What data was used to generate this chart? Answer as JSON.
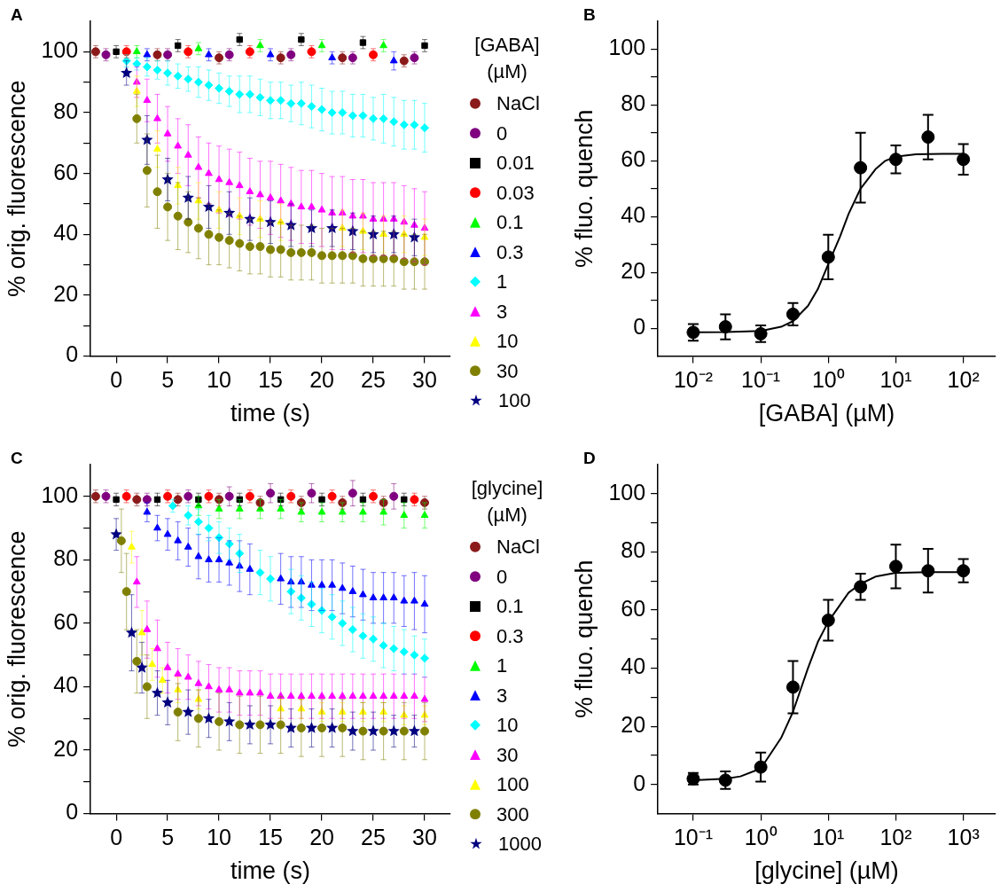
{
  "chart_data": [
    {
      "type": "scatter",
      "xlabel": "time (s)",
      "ylabel": "% orig. fluorescence",
      "legend_title": "[GABA] (µM)",
      "legend": "right",
      "annotations": [
        "A"
      ],
      "xlim": [
        -2.5,
        32.5
      ],
      "xticks": [
        0,
        5,
        10,
        15,
        20,
        25,
        30
      ],
      "ylim": [
        0,
        110
      ],
      "yticks": [
        0,
        {
          "value": 10,
          "label": null
        },
        20,
        {
          "value": 30,
          "label": null
        },
        40,
        {
          "value": 50,
          "label": null
        },
        60,
        {
          "value": 70,
          "label": null
        },
        80,
        {
          "value": 90,
          "label": null
        },
        100
      ],
      "series": [
        {
          "name": "NaCl",
          "color": "#8b1a1a",
          "marker": "circle",
          "x": [
            -2,
            4,
            10,
            16,
            22,
            28
          ],
          "values": [
            100,
            99,
            98,
            98,
            98,
            97
          ],
          "errors": [
            2,
            2,
            2,
            2,
            2,
            2
          ]
        },
        {
          "name": "0",
          "color": "#800080",
          "marker": "circle",
          "x": [
            -1,
            5,
            11,
            17,
            23,
            29
          ],
          "values": [
            99,
            99,
            99,
            99,
            98,
            98
          ],
          "errors": [
            2,
            2,
            2,
            2,
            2,
            2
          ]
        },
        {
          "name": "0.01",
          "color": "#000000",
          "marker": "square",
          "x": [
            0,
            6,
            12,
            18,
            24,
            30
          ],
          "values": [
            100,
            102,
            104,
            104,
            103,
            102
          ],
          "errors": [
            2,
            2,
            2,
            2,
            2,
            2
          ]
        },
        {
          "name": "0.03",
          "color": "#ff0000",
          "marker": "circle",
          "x": [
            1,
            7,
            13,
            19,
            25
          ],
          "values": [
            100,
            100,
            100,
            100,
            99
          ],
          "errors": [
            2,
            2,
            2,
            2,
            2
          ]
        },
        {
          "name": "0.1",
          "color": "#00ff00",
          "marker": "triangle",
          "x": [
            2,
            8,
            14,
            20,
            26
          ],
          "values": [
            100,
            101,
            102,
            102,
            102
          ],
          "errors": [
            2,
            2,
            2,
            2,
            2
          ]
        },
        {
          "name": "0.3",
          "color": "#0000ff",
          "marker": "triangle",
          "x": [
            3,
            9,
            15,
            21,
            27
          ],
          "values": [
            99,
            99,
            99,
            98,
            97
          ],
          "errors": [
            2,
            2,
            2,
            2,
            3
          ]
        },
        {
          "name": "1",
          "color": "#00ffff",
          "marker": "diamond",
          "x": [
            1,
            2,
            3,
            4,
            5,
            6,
            7,
            8,
            9,
            10,
            11,
            12,
            13,
            14,
            15,
            16,
            17,
            18,
            19,
            20,
            21,
            22,
            23,
            24,
            25,
            26,
            27,
            28,
            29,
            30
          ],
          "values": [
            97,
            96,
            95,
            94,
            93,
            92,
            91,
            90,
            89,
            88,
            87,
            86,
            86,
            85,
            84,
            84,
            83,
            83,
            82,
            81,
            80,
            80,
            79,
            79,
            78,
            78,
            77,
            76,
            76,
            75
          ],
          "errors": [
            2,
            2,
            3,
            3,
            4,
            4,
            4,
            5,
            5,
            5,
            5,
            6,
            6,
            6,
            6,
            6,
            6,
            7,
            7,
            7,
            7,
            7,
            7,
            7,
            7,
            8,
            8,
            8,
            8,
            8
          ]
        },
        {
          "name": "3",
          "color": "#ff00ff",
          "marker": "triangle",
          "x": [
            2,
            3,
            4,
            5,
            6,
            7,
            8,
            9,
            10,
            11,
            12,
            13,
            14,
            15,
            16,
            17,
            18,
            19,
            20,
            21,
            22,
            23,
            24,
            25,
            26,
            27,
            28,
            29,
            30
          ],
          "values": [
            90,
            84,
            78,
            73,
            69,
            66,
            62,
            60,
            58,
            57,
            56,
            54,
            53,
            52,
            51,
            50,
            49,
            49,
            48,
            47,
            47,
            46,
            46,
            45,
            45,
            45,
            44,
            43,
            42
          ],
          "errors": [
            5,
            7,
            8,
            9,
            9,
            10,
            10,
            10,
            11,
            11,
            11,
            11,
            11,
            12,
            12,
            12,
            12,
            12,
            12,
            12,
            12,
            12,
            12,
            12,
            12,
            12,
            12,
            12,
            12
          ]
        },
        {
          "name": "10",
          "color": "#ffff00",
          "marker": "triangle",
          "x": [
            2,
            4,
            6,
            8,
            10,
            12,
            14,
            16,
            22,
            24,
            26,
            28,
            30
          ],
          "values": [
            87,
            68,
            56,
            51,
            48,
            46,
            45,
            44,
            42,
            41,
            40,
            40,
            39
          ],
          "errors": [
            5,
            6,
            6,
            6,
            6,
            6,
            6,
            6,
            6,
            6,
            6,
            6,
            6
          ]
        },
        {
          "name": "30",
          "color": "#808000",
          "marker": "circle",
          "x": [
            2,
            3,
            4,
            5,
            6,
            7,
            8,
            9,
            10,
            11,
            12,
            13,
            14,
            15,
            16,
            17,
            18,
            19,
            20,
            21,
            22,
            23,
            24,
            25,
            26,
            27,
            28,
            29,
            30
          ],
          "values": [
            78,
            61,
            54,
            49,
            46,
            44,
            42,
            40,
            39,
            38,
            37,
            36,
            36,
            35,
            35,
            34,
            34,
            34,
            33,
            33,
            33,
            33,
            32,
            32,
            32,
            32,
            31,
            31,
            31
          ],
          "errors": [
            8,
            12,
            12,
            11,
            11,
            10,
            10,
            10,
            9,
            9,
            9,
            9,
            9,
            9,
            9,
            9,
            9,
            9,
            9,
            9,
            9,
            9,
            9,
            9,
            9,
            9,
            9,
            9,
            9
          ]
        },
        {
          "name": "100",
          "color": "#000080",
          "marker": "star",
          "x": [
            1,
            3,
            5,
            7,
            9,
            11,
            13,
            15,
            17,
            19,
            21,
            23,
            25,
            27,
            29
          ],
          "values": [
            93,
            71,
            58,
            52,
            49,
            47,
            45,
            44,
            43,
            42,
            42,
            41,
            40,
            40,
            39
          ],
          "errors": [
            4,
            8,
            7,
            7,
            7,
            7,
            7,
            7,
            7,
            6,
            6,
            6,
            6,
            6,
            6
          ]
        }
      ]
    },
    {
      "type": "scatter",
      "xlabel": "[GABA] (µM)",
      "ylabel": "% fluo. quench",
      "annotations": [
        "B"
      ],
      "log": "x",
      "marker": "circle",
      "xlim": [
        0.003,
        300
      ],
      "xticks": [
        {
          "value": 0.01,
          "label": "10⁻²"
        },
        {
          "value": 0.1,
          "label": "10⁻¹"
        },
        {
          "value": 1,
          "label": "10⁰"
        },
        {
          "value": 10,
          "label": "10¹"
        },
        {
          "value": 100,
          "label": "10²"
        }
      ],
      "ylim": [
        -10,
        110
      ],
      "yticks": [
        0,
        {
          "value": 10,
          "label": null
        },
        20,
        {
          "value": 30,
          "label": null
        },
        40,
        {
          "value": 50,
          "label": null
        },
        60,
        {
          "value": 70,
          "label": null
        },
        80,
        {
          "value": 90,
          "label": null
        },
        100
      ],
      "x": [
        0.01,
        0.03,
        0.1,
        0.3,
        1,
        3,
        10,
        30,
        100
      ],
      "series": [
        {
          "color": "#000000",
          "values": [
            -1.5,
            0.5,
            -2,
            5,
            25.5,
            57.5,
            60.5,
            68.5,
            60.5
          ],
          "errors": [
            3,
            4.5,
            3,
            4,
            8,
            12.5,
            5,
            8,
            5.5
          ]
        },
        {
          "type": "line",
          "marker": "none",
          "color": "#000000",
          "x": [
            0.01,
            0.03,
            0.1,
            0.2,
            0.3,
            0.5,
            0.7,
            1,
            1.5,
            2,
            3,
            5,
            7,
            10,
            20,
            50,
            100
          ],
          "values": [
            -1.5,
            -1.4,
            -1,
            0.5,
            2.5,
            8,
            14,
            23,
            33,
            41,
            50,
            57,
            60,
            61.5,
            62.3,
            62.5,
            62.5
          ]
        }
      ]
    },
    {
      "type": "scatter",
      "xlabel": "time (s)",
      "ylabel": "% orig. fluorescence",
      "legend_title": "[glycine] (µM)",
      "legend": "right",
      "annotations": [
        "C"
      ],
      "xlim": [
        -2.5,
        32.5
      ],
      "xticks": [
        0,
        5,
        10,
        15,
        20,
        25,
        30
      ],
      "ylim": [
        0,
        110
      ],
      "yticks": [
        0,
        {
          "value": 10,
          "label": null
        },
        20,
        {
          "value": 30,
          "label": null
        },
        40,
        {
          "value": 50,
          "label": null
        },
        60,
        {
          "value": 70,
          "label": null
        },
        80,
        {
          "value": 90,
          "label": null
        },
        100
      ],
      "series": [
        {
          "name": "NaCl",
          "color": "#8b1a1a",
          "marker": "circle",
          "x": [
            -2,
            2,
            6,
            10,
            14,
            18,
            22,
            26,
            30
          ],
          "values": [
            100,
            99,
            99,
            99,
            98,
            98,
            98,
            98,
            98
          ],
          "errors": [
            2,
            2,
            2,
            2,
            2,
            2,
            2,
            2,
            2
          ]
        },
        {
          "name": "0",
          "color": "#800080",
          "marker": "circle",
          "x": [
            -1,
            3,
            7,
            11,
            15,
            19,
            23,
            27
          ],
          "values": [
            100,
            99,
            100,
            100,
            101,
            101,
            101,
            100
          ],
          "errors": [
            2,
            2,
            2,
            3,
            3,
            3,
            4,
            4
          ]
        },
        {
          "name": "0.1",
          "color": "#000000",
          "marker": "square",
          "x": [
            0,
            4,
            8,
            12,
            16,
            20,
            24,
            28
          ],
          "values": [
            99,
            99,
            99,
            99,
            99,
            99,
            99,
            99
          ],
          "errors": [
            2,
            2,
            2,
            2,
            2,
            2,
            2,
            2
          ]
        },
        {
          "name": "0.3",
          "color": "#ff0000",
          "marker": "circle",
          "x": [
            1,
            5,
            9,
            13,
            17,
            21,
            25,
            29
          ],
          "values": [
            100,
            100,
            100,
            100,
            100,
            100,
            100,
            99
          ],
          "errors": [
            2,
            2,
            2,
            2,
            2,
            2,
            2,
            2
          ]
        },
        {
          "name": "1",
          "color": "#00ff00",
          "marker": "triangle",
          "x": [
            8,
            10,
            12,
            14,
            16,
            18,
            20,
            22,
            24,
            26,
            28,
            30
          ],
          "values": [
            97,
            96,
            96,
            96,
            96,
            95,
            95,
            95,
            95,
            95,
            94,
            94
          ],
          "errors": [
            3,
            3,
            3,
            3,
            3,
            3,
            3,
            3,
            3,
            4,
            4,
            4
          ]
        },
        {
          "name": "3",
          "color": "#0000ff",
          "marker": "triangle",
          "x": [
            3,
            4,
            5,
            6,
            7,
            8,
            9,
            10,
            11,
            12,
            13,
            16,
            17,
            18,
            19,
            20,
            21,
            22,
            23,
            24,
            25,
            26,
            27,
            28,
            29,
            30
          ],
          "values": [
            95,
            90,
            88,
            86,
            84,
            81,
            80,
            80,
            79,
            78,
            77,
            74,
            73,
            73,
            72,
            72,
            72,
            71,
            70,
            69,
            68,
            68,
            68,
            67,
            67,
            66
          ],
          "errors": [
            3,
            4,
            5,
            6,
            6,
            7,
            7,
            7,
            7,
            8,
            8,
            8,
            8,
            8,
            8,
            8,
            8,
            8,
            8,
            8,
            8,
            8,
            8,
            8,
            9,
            9
          ]
        },
        {
          "name": "10",
          "color": "#00ffff",
          "marker": "diamond",
          "x": [
            5.5,
            7,
            8,
            9,
            10,
            11,
            12,
            14,
            15,
            17,
            18,
            19,
            20,
            21,
            22,
            23,
            24,
            25,
            26,
            27,
            28,
            29,
            30
          ],
          "values": [
            97,
            94,
            92,
            90,
            87,
            85,
            82,
            76,
            74,
            70,
            68,
            66,
            64,
            62,
            60,
            58,
            56,
            55,
            53,
            52,
            51,
            50,
            49
          ],
          "errors": [
            2,
            3,
            4,
            4,
            5,
            5,
            6,
            7,
            7,
            7,
            7,
            7,
            7,
            7,
            7,
            7,
            7,
            7,
            7,
            7,
            7,
            6,
            6
          ]
        },
        {
          "name": "30",
          "color": "#ff00ff",
          "marker": "triangle",
          "x": [
            2,
            3,
            4,
            5,
            6,
            7,
            8,
            9,
            10,
            11,
            12,
            13,
            14,
            15,
            16,
            17,
            18,
            19,
            20,
            21,
            22,
            23,
            24,
            25,
            26,
            27,
            28,
            29,
            30
          ],
          "values": [
            73,
            58,
            52,
            46,
            44,
            43,
            41,
            40,
            39,
            39,
            38,
            38,
            38,
            37,
            37,
            37,
            37,
            37,
            37,
            37,
            37,
            37,
            37,
            37,
            37,
            37,
            37,
            37,
            36
          ],
          "errors": [
            8,
            9,
            9,
            8,
            8,
            7,
            7,
            7,
            7,
            7,
            7,
            7,
            7,
            7,
            7,
            7,
            7,
            7,
            7,
            7,
            7,
            7,
            7,
            7,
            7,
            7,
            7,
            7,
            7
          ]
        },
        {
          "name": "100",
          "color": "#ffff00",
          "marker": "triangle",
          "x": [
            1.5,
            2.5,
            3.5,
            4.5,
            6,
            8,
            16,
            18,
            20,
            22,
            24,
            26,
            28,
            30
          ],
          "values": [
            84,
            57,
            47,
            42,
            39,
            36,
            33,
            33,
            32,
            32,
            32,
            32,
            31,
            31
          ],
          "errors": [
            5,
            7,
            5,
            4,
            4,
            3,
            3,
            3,
            3,
            3,
            3,
            3,
            3,
            3
          ]
        },
        {
          "name": "300",
          "color": "#808000",
          "marker": "circle",
          "x": [
            0.5,
            1,
            2,
            3,
            6,
            8,
            10,
            12,
            14,
            16,
            18,
            20,
            22,
            24,
            26,
            28,
            30
          ],
          "values": [
            86,
            70,
            48,
            40,
            32,
            30,
            29,
            28,
            28,
            28,
            27,
            27,
            27,
            26,
            26,
            26,
            26
          ],
          "errors": [
            10,
            12,
            10,
            10,
            9,
            9,
            9,
            9,
            9,
            9,
            9,
            9,
            9,
            9,
            9,
            9,
            9
          ]
        },
        {
          "name": "1000",
          "color": "#000080",
          "marker": "star",
          "x": [
            0,
            1.5,
            2.5,
            4,
            5,
            7,
            9,
            11,
            13,
            15,
            17,
            19,
            21,
            23,
            25,
            27,
            29
          ],
          "values": [
            88,
            57,
            46,
            38,
            35,
            32,
            30,
            29,
            28,
            28,
            27,
            27,
            27,
            26,
            26,
            26,
            26
          ],
          "errors": [
            5,
            12,
            8,
            7,
            7,
            7,
            6,
            6,
            6,
            6,
            6,
            6,
            6,
            6,
            6,
            5,
            5
          ]
        }
      ]
    },
    {
      "type": "scatter",
      "xlabel": "[glycine] (µM)",
      "ylabel": "% fluo. quench",
      "annotations": [
        "D"
      ],
      "log": "x",
      "marker": "circle",
      "xlim": [
        0.03,
        3000
      ],
      "xticks": [
        {
          "value": 0.1,
          "label": "10⁻¹"
        },
        {
          "value": 1,
          "label": "10⁰"
        },
        {
          "value": 10,
          "label": "10¹"
        },
        {
          "value": 100,
          "label": "10²"
        },
        {
          "value": 1000,
          "label": "10³"
        }
      ],
      "ylim": [
        -10,
        110
      ],
      "yticks": [
        0,
        {
          "value": 10,
          "label": null
        },
        20,
        {
          "value": 30,
          "label": null
        },
        40,
        {
          "value": 50,
          "label": null
        },
        60,
        {
          "value": 70,
          "label": null
        },
        80,
        {
          "value": 90,
          "label": null
        },
        100
      ],
      "x": [
        0.1,
        0.3,
        1,
        3,
        10,
        30,
        100,
        300,
        1000
      ],
      "series": [
        {
          "color": "#000000",
          "values": [
            2,
            1.5,
            6,
            33.5,
            56.5,
            68,
            75,
            73.5,
            73.5
          ],
          "errors": [
            2,
            3,
            5,
            9,
            7,
            4.5,
            7.5,
            7.5,
            4
          ]
        },
        {
          "type": "line",
          "marker": "none",
          "color": "#000000",
          "x": [
            0.1,
            0.3,
            0.5,
            1,
            2,
            3,
            5,
            7,
            10,
            20,
            30,
            50,
            100,
            300,
            1000
          ],
          "values": [
            1.5,
            2,
            2.8,
            5.5,
            16,
            25,
            40,
            49,
            56,
            66,
            69,
            71.5,
            72.8,
            73,
            73
          ]
        }
      ]
    }
  ]
}
